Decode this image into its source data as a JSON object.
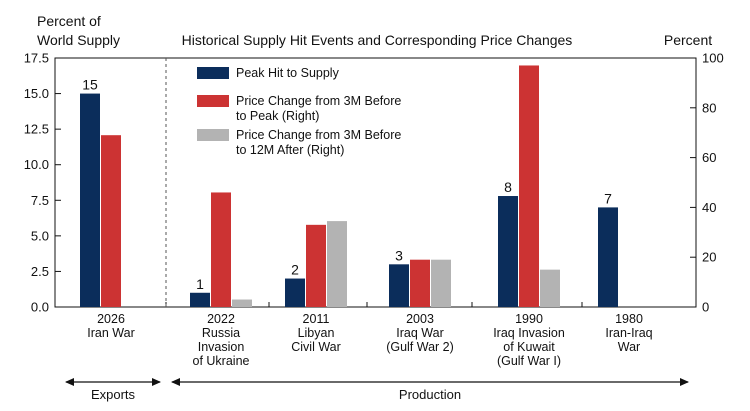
{
  "chart_data": {
    "type": "bar",
    "title": "Historical Supply Hit Events and Corresponding Price Changes",
    "ylabel_left": [
      "Percent of",
      "World Supply"
    ],
    "ylabel_right": "Percent",
    "ylim_left": [
      0,
      17.5
    ],
    "ylim_right": [
      0,
      100
    ],
    "left_ticks": [
      "0.0",
      "2.5",
      "5.0",
      "7.5",
      "10.0",
      "12.5",
      "15.0",
      "17.5"
    ],
    "right_ticks": [
      "0",
      "20",
      "40",
      "60",
      "80",
      "100"
    ],
    "categories": [
      {
        "lines": [
          "2026",
          "Iran War"
        ]
      },
      {
        "lines": [
          "2022",
          "Russia",
          "Invasion",
          "of Ukraine"
        ]
      },
      {
        "lines": [
          "2011",
          "Libyan",
          "Civil War"
        ]
      },
      {
        "lines": [
          "2003",
          "Iraq War",
          "(Gulf War 2)"
        ]
      },
      {
        "lines": [
          "1990",
          "Iraq Invasion",
          "of Kuwait",
          "(Gulf War I)"
        ]
      },
      {
        "lines": [
          "1980",
          "Iran-Iraq",
          "War"
        ]
      }
    ],
    "series": [
      {
        "name": "Peak Hit to Supply",
        "legend_lines": [
          "Peak Hit to Supply"
        ],
        "axis": "left",
        "color": "#0b2d5b",
        "values": [
          15,
          1,
          2,
          3,
          7.8,
          7
        ],
        "labels": [
          "15",
          "1",
          "2",
          "3",
          "8",
          "7"
        ]
      },
      {
        "name": "Price Change from 3M Before to Peak (Right)",
        "legend_lines": [
          "Price Change from 3M Before",
          "to Peak (Right)"
        ],
        "axis": "right",
        "color": "#cc3333",
        "values": [
          69,
          46,
          33,
          19,
          97,
          null
        ]
      },
      {
        "name": "Price Change from 3M Before to 12M After (Right)",
        "legend_lines": [
          "Price Change from 3M Before",
          "to 12M After (Right)"
        ],
        "axis": "right",
        "color": "#b3b3b3",
        "values": [
          null,
          3,
          34.5,
          19,
          15,
          null
        ]
      }
    ],
    "groups": [
      {
        "label": "Exports",
        "from_category": 0,
        "to_category": 0
      },
      {
        "label": "Production",
        "from_category": 1,
        "to_category": 5
      }
    ],
    "legend_position": "top-left of production panel"
  }
}
